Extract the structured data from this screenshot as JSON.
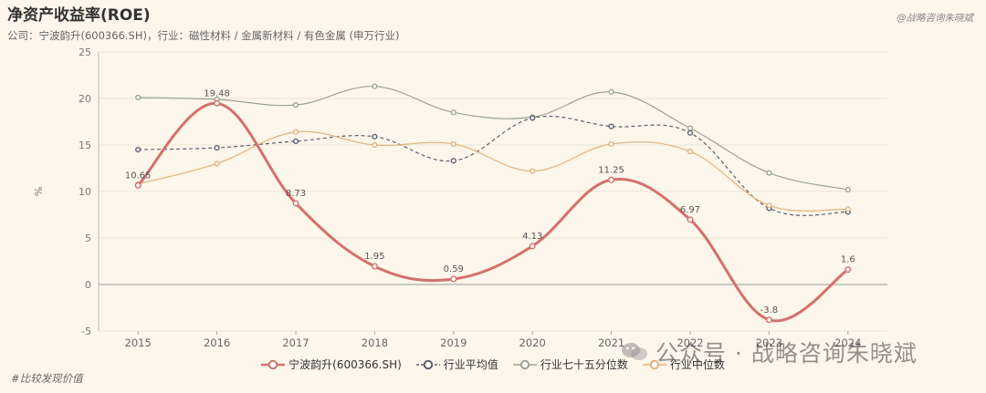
{
  "header": {
    "title": "净资产收益率(ROE)",
    "subtitle": "公司：宁波韵升(600366.SH)，行业：磁性材料 / 金属新材料 / 有色金属 (申万行业)",
    "brand": "@战略咨询朱晓斌"
  },
  "footer": {
    "tag": "#比较发现价值",
    "watermark": "公众号 · 战略咨询朱晓斌"
  },
  "chart_data": {
    "type": "line",
    "title": "净资产收益率(ROE)",
    "xlabel": "",
    "ylabel": "%",
    "categories": [
      "2015",
      "2016",
      "2017",
      "2018",
      "2019",
      "2020",
      "2021",
      "2022",
      "2023",
      "2024"
    ],
    "ylim": [
      -5,
      25
    ],
    "yticks": [
      -5,
      0,
      5,
      10,
      15,
      20,
      25
    ],
    "grid": true,
    "legend_position": "bottom",
    "series": [
      {
        "name": "宁波韵升(600366.SH)",
        "values": [
          10.65,
          19.48,
          8.73,
          1.95,
          0.59,
          4.13,
          11.25,
          6.97,
          -3.8,
          1.6
        ],
        "color": "#d4706f",
        "style": "solid-thick",
        "labels": true
      },
      {
        "name": "行业平均值",
        "values": [
          14.5,
          14.7,
          15.4,
          15.9,
          13.3,
          17.9,
          17.0,
          16.3,
          8.2,
          7.8
        ],
        "color": "#5c5f6e",
        "style": "dashed",
        "labels": false
      },
      {
        "name": "行业七十五分位数",
        "values": [
          20.1,
          19.9,
          19.3,
          21.3,
          18.5,
          18.0,
          20.7,
          16.8,
          12.0,
          10.2
        ],
        "color": "#9aa395",
        "style": "solid",
        "labels": false
      },
      {
        "name": "行业中位数",
        "values": [
          10.8,
          13.0,
          16.4,
          15.0,
          15.1,
          12.2,
          15.1,
          14.3,
          8.5,
          8.1
        ],
        "color": "#e0b27d",
        "style": "solid",
        "labels": false
      }
    ]
  }
}
